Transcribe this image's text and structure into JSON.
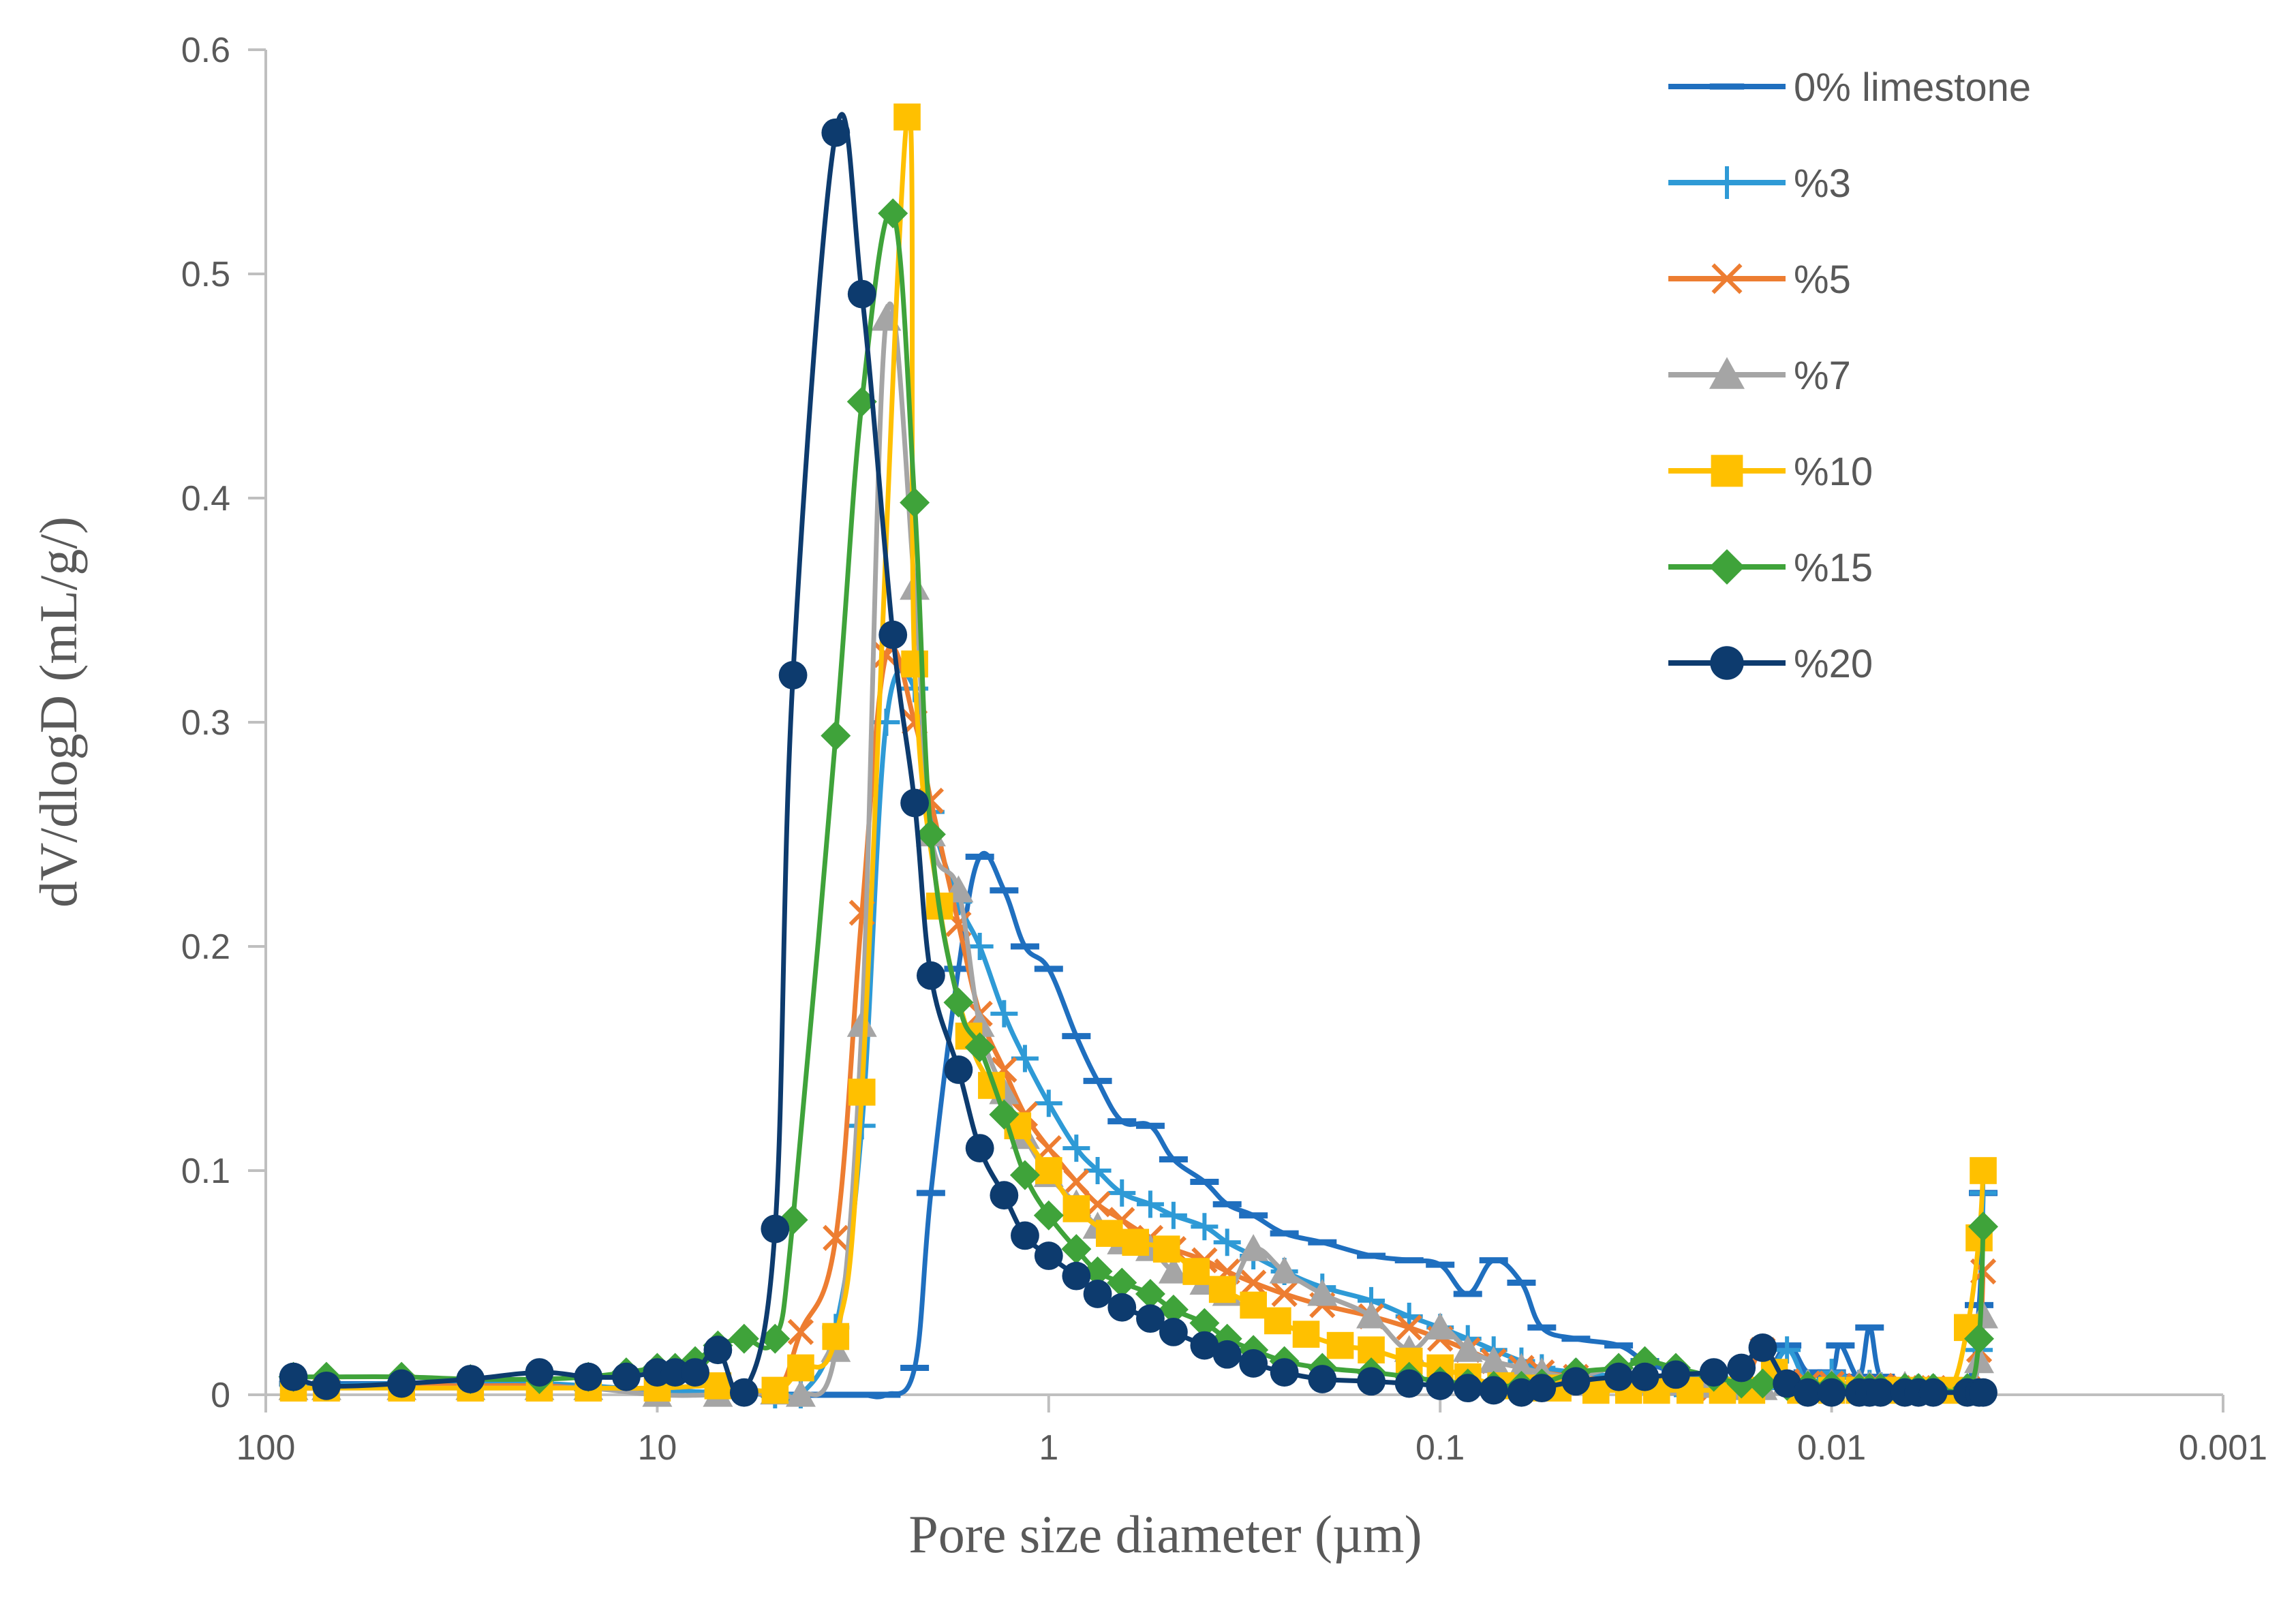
{
  "chart_data": {
    "type": "line",
    "title": "",
    "xlabel": "Pore size diameter (µm)",
    "ylabel": "dV/dlogD (mL/g/)",
    "x_scale": "log",
    "x_reversed": true,
    "xlim": [
      100,
      0.001
    ],
    "ylim": [
      0,
      0.6
    ],
    "x_ticks": [
      100,
      10,
      1,
      0.1,
      0.01,
      0.001
    ],
    "x_tick_labels": [
      "100",
      "10",
      "1",
      "0.1",
      "0.01",
      "0.001"
    ],
    "y_ticks": [
      0,
      0.1,
      0.2,
      0.3,
      0.4,
      0.5,
      0.6
    ],
    "y_tick_labels": [
      "0",
      "0.1",
      "0.2",
      "0.3",
      "0.4",
      "0.5",
      "0.6"
    ],
    "grid": false,
    "legend_position": "top-right",
    "series": [
      {
        "name": "0% limestone",
        "color": "#1f6fbf",
        "marker": "dash",
        "x": [
          85,
          70,
          45,
          30,
          20,
          15,
          10,
          7,
          5,
          4.3,
          4,
          3.5,
          3,
          2.6,
          2.2,
          2,
          1.7,
          1.5,
          1.3,
          1.15,
          1,
          0.85,
          0.75,
          0.65,
          0.55,
          0.48,
          0.4,
          0.35,
          0.3,
          0.25,
          0.2,
          0.15,
          0.12,
          0.1,
          0.085,
          0.073,
          0.062,
          0.055,
          0.045,
          0.035,
          0.03,
          0.025,
          0.02,
          0.017,
          0.015,
          0.013,
          0.0115,
          0.01,
          0.0095,
          0.0085,
          0.008,
          0.0075,
          0.0065,
          0.006,
          0.0055,
          0.0045,
          0.0042,
          0.0041
        ],
        "y": [
          0.005,
          0.005,
          0.005,
          0.005,
          0.005,
          0.003,
          0.002,
          0.001,
          0,
          0,
          0,
          0,
          0,
          0,
          0.012,
          0.09,
          0.19,
          0.24,
          0.225,
          0.2,
          0.19,
          0.16,
          0.14,
          0.122,
          0.12,
          0.105,
          0.095,
          0.085,
          0.08,
          0.072,
          0.068,
          0.062,
          0.06,
          0.058,
          0.045,
          0.06,
          0.05,
          0.03,
          0.025,
          0.022,
          0.015,
          0.01,
          0.008,
          0.006,
          0.005,
          0.022,
          0.01,
          0.01,
          0.022,
          0.008,
          0.03,
          0.008,
          0.005,
          0.005,
          0.005,
          0.005,
          0.04,
          0.09
        ]
      },
      {
        "name": "%3",
        "color": "#2e9ad6",
        "marker": "plus",
        "x": [
          85,
          70,
          45,
          30,
          20,
          15,
          10,
          7,
          5,
          4.3,
          3.5,
          3,
          2.6,
          2.2,
          2,
          1.7,
          1.5,
          1.3,
          1.15,
          1,
          0.85,
          0.75,
          0.65,
          0.55,
          0.48,
          0.4,
          0.35,
          0.3,
          0.25,
          0.2,
          0.15,
          0.12,
          0.1,
          0.085,
          0.073,
          0.062,
          0.055,
          0.045,
          0.035,
          0.03,
          0.025,
          0.02,
          0.017,
          0.015,
          0.013,
          0.0115,
          0.01,
          0.0085,
          0.008,
          0.0075,
          0.0065,
          0.006,
          0.0055,
          0.0045,
          0.0042,
          0.0041
        ],
        "y": [
          0.004,
          0.004,
          0.005,
          0.005,
          0.005,
          0.004,
          0.002,
          0.001,
          0,
          0,
          0.03,
          0.12,
          0.3,
          0.315,
          0.26,
          0.22,
          0.2,
          0.17,
          0.15,
          0.13,
          0.11,
          0.1,
          0.09,
          0.085,
          0.08,
          0.075,
          0.068,
          0.062,
          0.055,
          0.048,
          0.042,
          0.035,
          0.03,
          0.025,
          0.02,
          0.015,
          0.012,
          0.01,
          0.008,
          0.006,
          0.005,
          0.004,
          0.003,
          0.003,
          0.02,
          0.005,
          0.01,
          0.005,
          0.005,
          0.004,
          0.003,
          0.003,
          0.003,
          0.003,
          0.02,
          0.09
        ]
      },
      {
        "name": "%5",
        "color": "#ed7d31",
        "marker": "x",
        "x": [
          85,
          70,
          45,
          30,
          20,
          15,
          10,
          7,
          5,
          4.3,
          3.5,
          3,
          2.6,
          2.2,
          2,
          1.7,
          1.5,
          1.3,
          1.15,
          1,
          0.85,
          0.75,
          0.65,
          0.55,
          0.48,
          0.4,
          0.35,
          0.3,
          0.25,
          0.2,
          0.15,
          0.12,
          0.1,
          0.085,
          0.073,
          0.062,
          0.055,
          0.045,
          0.035,
          0.03,
          0.025,
          0.02,
          0.017,
          0.015,
          0.013,
          0.0115,
          0.01,
          0.0085,
          0.008,
          0.0075,
          0.0065,
          0.006,
          0.0055,
          0.0045,
          0.0042,
          0.0041
        ],
        "y": [
          0.003,
          0.003,
          0.004,
          0.004,
          0.004,
          0.003,
          0.003,
          0.004,
          0.002,
          0.028,
          0.07,
          0.215,
          0.33,
          0.3,
          0.265,
          0.21,
          0.17,
          0.145,
          0.125,
          0.11,
          0.095,
          0.085,
          0.078,
          0.07,
          0.065,
          0.06,
          0.055,
          0.05,
          0.045,
          0.04,
          0.035,
          0.03,
          0.025,
          0.02,
          0.015,
          0.012,
          0.01,
          0.008,
          0.006,
          0.005,
          0.004,
          0.003,
          0.003,
          0.02,
          0.006,
          0.005,
          0.005,
          0.004,
          0.004,
          0.004,
          0.003,
          0.003,
          0.003,
          0.003,
          0.02,
          0.055
        ]
      },
      {
        "name": "%7",
        "color": "#a5a5a5",
        "marker": "triangle",
        "x": [
          85,
          70,
          45,
          30,
          20,
          15,
          10,
          7,
          5,
          4.3,
          3.5,
          3,
          2.6,
          2.2,
          2,
          1.7,
          1.5,
          1.3,
          1.15,
          1,
          0.85,
          0.75,
          0.65,
          0.55,
          0.48,
          0.4,
          0.35,
          0.3,
          0.25,
          0.2,
          0.15,
          0.12,
          0.1,
          0.085,
          0.073,
          0.062,
          0.055,
          0.045,
          0.035,
          0.03,
          0.025,
          0.02,
          0.017,
          0.015,
          0.013,
          0.0115,
          0.01,
          0.0085,
          0.008,
          0.0075,
          0.0065,
          0.006,
          0.0055,
          0.0045,
          0.0042,
          0.0041
        ],
        "y": [
          0.003,
          0.003,
          0.003,
          0.003,
          0.003,
          0.003,
          0,
          0,
          0.001,
          0,
          0.02,
          0.165,
          0.48,
          0.36,
          0.25,
          0.225,
          0.165,
          0.135,
          0.115,
          0.098,
          0.085,
          0.075,
          0.068,
          0.065,
          0.055,
          0.05,
          0.045,
          0.065,
          0.055,
          0.045,
          0.035,
          0.02,
          0.03,
          0.02,
          0.015,
          0.012,
          0.01,
          0.008,
          0.012,
          0.006,
          0.005,
          0.004,
          0.003,
          0.003,
          0.005,
          0.005,
          0.005,
          0.005,
          0.004,
          0.004,
          0.004,
          0.003,
          0.003,
          0.003,
          0.015,
          0.035
        ]
      },
      {
        "name": "%10",
        "color": "#ffc000",
        "marker": "square",
        "x": [
          85,
          70,
          45,
          30,
          20,
          15,
          10,
          7,
          5,
          4.3,
          3.5,
          3,
          2.3,
          2.2,
          1.9,
          1.6,
          1.4,
          1.2,
          1,
          0.85,
          0.7,
          0.6,
          0.5,
          0.42,
          0.36,
          0.3,
          0.26,
          0.22,
          0.18,
          0.15,
          0.12,
          0.1,
          0.085,
          0.07,
          0.06,
          0.05,
          0.04,
          0.033,
          0.028,
          0.023,
          0.019,
          0.016,
          0.014,
          0.012,
          0.01,
          0.0085,
          0.007,
          0.006,
          0.005,
          0.0045,
          0.0042,
          0.0041
        ],
        "y": [
          0.003,
          0.003,
          0.003,
          0.003,
          0.003,
          0.003,
          0.003,
          0.004,
          0.002,
          0.012,
          0.026,
          0.135,
          0.57,
          0.326,
          0.218,
          0.16,
          0.138,
          0.12,
          0.1,
          0.083,
          0.072,
          0.068,
          0.065,
          0.055,
          0.047,
          0.04,
          0.033,
          0.027,
          0.022,
          0.02,
          0.015,
          0.012,
          0.008,
          0.004,
          0.003,
          0.003,
          0.002,
          0.002,
          0.002,
          0.002,
          0.002,
          0.002,
          0.01,
          0.002,
          0.002,
          0.002,
          0.002,
          0.002,
          0.002,
          0.03,
          0.07,
          0.1
        ]
      },
      {
        "name": "%15",
        "color": "#3fa33a",
        "marker": "diamond",
        "x": [
          85,
          70,
          45,
          30,
          20,
          15,
          12,
          10,
          9,
          8,
          7,
          6,
          5,
          4.5,
          3.5,
          3,
          2.5,
          2.2,
          2,
          1.7,
          1.5,
          1.3,
          1.15,
          1,
          0.85,
          0.75,
          0.65,
          0.55,
          0.48,
          0.4,
          0.35,
          0.3,
          0.25,
          0.2,
          0.15,
          0.12,
          0.1,
          0.085,
          0.073,
          0.062,
          0.055,
          0.045,
          0.035,
          0.03,
          0.025,
          0.02,
          0.017,
          0.015,
          0.013,
          0.0115,
          0.01,
          0.0085,
          0.008,
          0.0075,
          0.0065,
          0.006,
          0.0055,
          0.0045,
          0.0042,
          0.0041
        ],
        "y": [
          0.008,
          0.008,
          0.008,
          0.007,
          0.007,
          0.008,
          0.01,
          0.012,
          0.012,
          0.015,
          0.022,
          0.025,
          0.025,
          0.078,
          0.294,
          0.443,
          0.527,
          0.398,
          0.25,
          0.175,
          0.155,
          0.125,
          0.098,
          0.08,
          0.065,
          0.055,
          0.05,
          0.045,
          0.038,
          0.032,
          0.025,
          0.02,
          0.015,
          0.012,
          0.01,
          0.008,
          0.006,
          0.005,
          0.004,
          0.004,
          0.005,
          0.01,
          0.012,
          0.015,
          0.012,
          0.008,
          0.005,
          0.005,
          0.004,
          0.004,
          0.004,
          0.003,
          0.003,
          0.003,
          0.003,
          0.003,
          0.003,
          0.003,
          0.025,
          0.075
        ]
      },
      {
        "name": "%20",
        "color": "#0d3b6e",
        "marker": "circle",
        "x": [
          85,
          70,
          45,
          30,
          20,
          15,
          12,
          10,
          9,
          8,
          7,
          6,
          5,
          4.5,
          3.5,
          3,
          2.5,
          2.2,
          2,
          1.7,
          1.5,
          1.3,
          1.15,
          1,
          0.85,
          0.75,
          0.65,
          0.55,
          0.48,
          0.4,
          0.35,
          0.3,
          0.25,
          0.2,
          0.15,
          0.12,
          0.1,
          0.085,
          0.073,
          0.062,
          0.055,
          0.045,
          0.035,
          0.03,
          0.025,
          0.02,
          0.017,
          0.015,
          0.013,
          0.0115,
          0.01,
          0.0085,
          0.008,
          0.0075,
          0.0065,
          0.006,
          0.0055,
          0.0045,
          0.0042,
          0.0041
        ],
        "y": [
          0.008,
          0.004,
          0.005,
          0.007,
          0.01,
          0.008,
          0.008,
          0.01,
          0.01,
          0.01,
          0.02,
          0.001,
          0.074,
          0.321,
          0.563,
          0.491,
          0.339,
          0.264,
          0.187,
          0.145,
          0.11,
          0.089,
          0.071,
          0.062,
          0.053,
          0.045,
          0.039,
          0.034,
          0.028,
          0.022,
          0.018,
          0.014,
          0.01,
          0.007,
          0.006,
          0.005,
          0.004,
          0.003,
          0.002,
          0.001,
          0.003,
          0.006,
          0.008,
          0.008,
          0.009,
          0.01,
          0.012,
          0.021,
          0.005,
          0.001,
          0.001,
          0.001,
          0.001,
          0.001,
          0.001,
          0.001,
          0.001,
          0.001,
          0.001,
          0.001
        ]
      }
    ]
  }
}
